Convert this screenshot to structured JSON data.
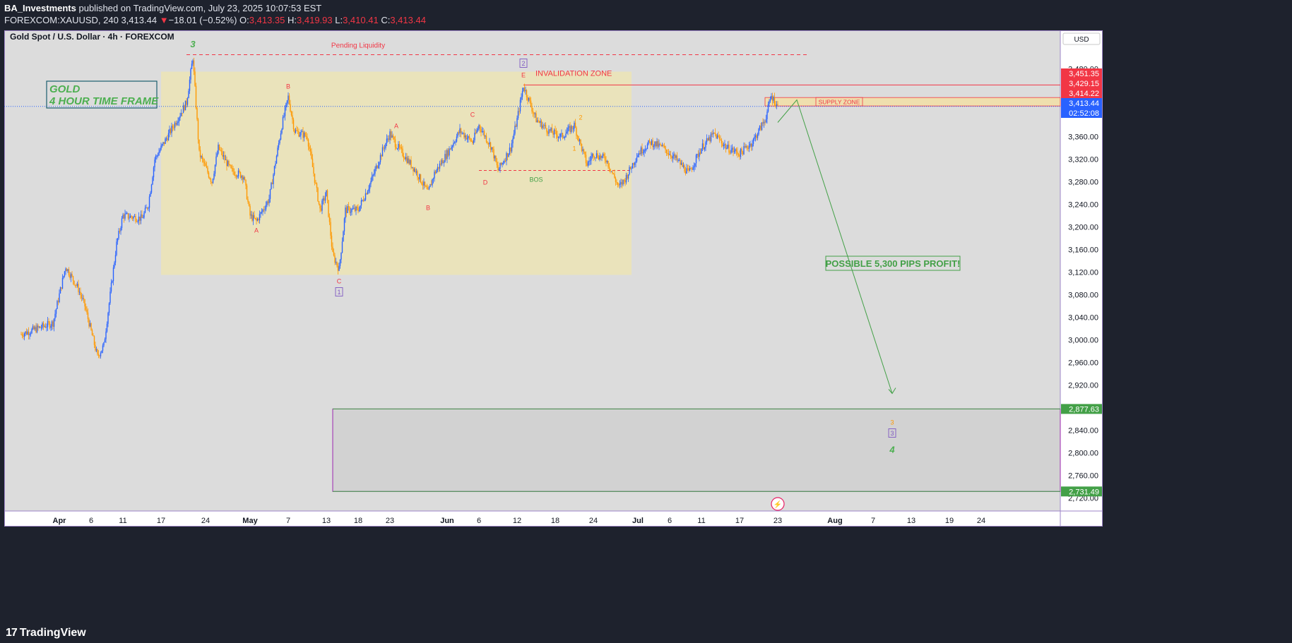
{
  "header": {
    "publisher": "BA_Investments",
    "published_text": " published on TradingView.com, July 23, 2025 10:07:53 EST",
    "symbol_line": "FOREXCOM:XAUUSD, 240",
    "last": "3,413.44",
    "change_arrow": "▼",
    "change": "−18.01 (−0.52%)",
    "o_label": "O:",
    "o": "3,413.35",
    "h_label": "H:",
    "h": "3,419.93",
    "l_label": "L:",
    "l": "3,410.41",
    "c_label": "C:",
    "c": "3,413.44"
  },
  "footer": {
    "brand": "TradingView",
    "brand_mark": "17"
  },
  "chart_data": {
    "type": "candlestick",
    "title": "Gold Spot / U.S. Dollar · 4h · FOREXCOM",
    "currency": "USD",
    "ylim": [
      2700,
      3520
    ],
    "y_ticks": [
      2720,
      2760,
      2800,
      2840,
      2880,
      2920,
      2960,
      3000,
      3040,
      3080,
      3120,
      3160,
      3200,
      3240,
      3280,
      3320,
      3360,
      3400,
      3440,
      3480
    ],
    "y_tick_labels": [
      "2,720.00",
      "2,760.00",
      "2,800.00",
      "2,840.00",
      "2,880.00",
      "2,920.00",
      "2,960.00",
      "3,000.00",
      "3,040.00",
      "3,080.00",
      "3,120.00",
      "3,160.00",
      "3,200.00",
      "3,240.00",
      "3,280.00",
      "3,320.00",
      "3,360.00",
      "3,400.00",
      "3,440.00",
      "3,480.00"
    ],
    "x_ticks": [
      {
        "date": "2025-04-01",
        "label": "Apr"
      },
      {
        "date": "2025-04-06",
        "label": "6"
      },
      {
        "date": "2025-04-11",
        "label": "11"
      },
      {
        "date": "2025-04-17",
        "label": "17"
      },
      {
        "date": "2025-04-24",
        "label": "24"
      },
      {
        "date": "2025-05-01",
        "label": "May"
      },
      {
        "date": "2025-05-07",
        "label": "7"
      },
      {
        "date": "2025-05-13",
        "label": "13"
      },
      {
        "date": "2025-05-18",
        "label": "18"
      },
      {
        "date": "2025-05-23",
        "label": "23"
      },
      {
        "date": "2025-06-01",
        "label": "Jun"
      },
      {
        "date": "2025-06-06",
        "label": "6"
      },
      {
        "date": "2025-06-12",
        "label": "12"
      },
      {
        "date": "2025-06-18",
        "label": "18"
      },
      {
        "date": "2025-06-24",
        "label": "24"
      },
      {
        "date": "2025-07-01",
        "label": "Jul"
      },
      {
        "date": "2025-07-06",
        "label": "6"
      },
      {
        "date": "2025-07-11",
        "label": "11"
      },
      {
        "date": "2025-07-17",
        "label": "17"
      },
      {
        "date": "2025-07-23",
        "label": "23"
      },
      {
        "date": "2025-08-01",
        "label": "Aug"
      },
      {
        "date": "2025-08-07",
        "label": "7"
      },
      {
        "date": "2025-08-13",
        "label": "13"
      },
      {
        "date": "2025-08-19",
        "label": "19"
      },
      {
        "date": "2025-08-24",
        "label": "24"
      }
    ],
    "price_path": [
      [
        "2025-03-26",
        3010
      ],
      [
        "2025-03-31",
        3030
      ],
      [
        "2025-04-02",
        3130
      ],
      [
        "2025-04-03",
        3110
      ],
      [
        "2025-04-04",
        3090
      ],
      [
        "2025-04-05",
        3060
      ],
      [
        "2025-04-07",
        2970
      ],
      [
        "2025-04-08",
        2990
      ],
      [
        "2025-04-09",
        3080
      ],
      [
        "2025-04-10",
        3170
      ],
      [
        "2025-04-11",
        3220
      ],
      [
        "2025-04-14",
        3215
      ],
      [
        "2025-04-15",
        3240
      ],
      [
        "2025-04-16",
        3320
      ],
      [
        "2025-04-17",
        3340
      ],
      [
        "2025-04-21",
        3420
      ],
      [
        "2025-04-22",
        3500
      ],
      [
        "2025-04-23",
        3330
      ],
      [
        "2025-04-25",
        3280
      ],
      [
        "2025-04-26",
        3340
      ],
      [
        "2025-04-28",
        3300
      ],
      [
        "2025-04-30",
        3290
      ],
      [
        "2025-05-01",
        3220
      ],
      [
        "2025-05-02",
        3210
      ],
      [
        "2025-05-04",
        3250
      ],
      [
        "2025-05-06",
        3380
      ],
      [
        "2025-05-07",
        3430
      ],
      [
        "2025-05-08",
        3370
      ],
      [
        "2025-05-10",
        3360
      ],
      [
        "2025-05-12",
        3230
      ],
      [
        "2025-05-13",
        3260
      ],
      [
        "2025-05-14",
        3150
      ],
      [
        "2025-05-15",
        3125
      ],
      [
        "2025-05-16",
        3230
      ],
      [
        "2025-05-18",
        3230
      ],
      [
        "2025-05-20",
        3280
      ],
      [
        "2025-05-22",
        3340
      ],
      [
        "2025-05-23",
        3365
      ],
      [
        "2025-05-24",
        3345
      ],
      [
        "2025-05-27",
        3300
      ],
      [
        "2025-05-29",
        3260
      ],
      [
        "2025-05-30",
        3295
      ],
      [
        "2025-06-01",
        3330
      ],
      [
        "2025-06-03",
        3370
      ],
      [
        "2025-06-05",
        3350
      ],
      [
        "2025-06-06",
        3380
      ],
      [
        "2025-06-08",
        3340
      ],
      [
        "2025-06-09",
        3300
      ],
      [
        "2025-06-11",
        3340
      ],
      [
        "2025-06-12",
        3390
      ],
      [
        "2025-06-13",
        3450
      ],
      [
        "2025-06-15",
        3390
      ],
      [
        "2025-06-17",
        3370
      ],
      [
        "2025-06-19",
        3360
      ],
      [
        "2025-06-21",
        3380
      ],
      [
        "2025-06-23",
        3310
      ],
      [
        "2025-06-24",
        3330
      ],
      [
        "2025-06-26",
        3320
      ],
      [
        "2025-06-28",
        3270
      ],
      [
        "2025-06-29",
        3285
      ],
      [
        "2025-07-01",
        3330
      ],
      [
        "2025-07-03",
        3350
      ],
      [
        "2025-07-05",
        3340
      ],
      [
        "2025-07-07",
        3320
      ],
      [
        "2025-07-09",
        3295
      ],
      [
        "2025-07-11",
        3340
      ],
      [
        "2025-07-13",
        3365
      ],
      [
        "2025-07-15",
        3340
      ],
      [
        "2025-07-17",
        3330
      ],
      [
        "2025-07-19",
        3350
      ],
      [
        "2025-07-21",
        3390
      ],
      [
        "2025-07-22",
        3432
      ],
      [
        "2025-07-23",
        3413.44
      ]
    ],
    "annotations": {
      "timeframe_box": [
        "GOLD",
        "4 HOUR TIME FRAME"
      ],
      "pending_liquidity": "Pending Liquidity",
      "pending_liquidity_price": 3505,
      "invalidation_zone": "INVALIDATION ZONE",
      "invalidation_price": 3451.35,
      "supply_zone": "SUPPLY ZONE",
      "supply_zone_range": [
        3414.22,
        3429.15
      ],
      "bos": "BOS",
      "bos_price": 3300,
      "profit_text": "POSSIBLE 5,300 PIPS PROFIT!",
      "target_zone_range": [
        2731.49,
        2877.63
      ],
      "range_box": {
        "from": "2025-04-17",
        "to": "2025-06-30",
        "top": 3475,
        "bottom": 3115
      },
      "forecast": [
        [
          "2025-07-23",
          3385
        ],
        [
          "2025-07-26",
          3425
        ],
        [
          "2025-08-10",
          2905
        ]
      ],
      "wave_labels": [
        {
          "text": "3",
          "date": "2025-04-22",
          "price": 3518,
          "color": "#4caf50",
          "italic": true
        },
        {
          "text": "A",
          "date": "2025-05-02",
          "price": 3190,
          "color": "#f23645"
        },
        {
          "text": "B",
          "date": "2025-05-07",
          "price": 3445,
          "color": "#f23645"
        },
        {
          "text": "C",
          "date": "2025-05-15",
          "price": 3100,
          "color": "#f23645"
        },
        {
          "text": "1",
          "date": "2025-05-15",
          "price": 3080,
          "color": "#7e57c2",
          "boxed": true
        },
        {
          "text": "A",
          "date": "2025-05-24",
          "price": 3375,
          "color": "#f23645"
        },
        {
          "text": "B",
          "date": "2025-05-29",
          "price": 3230,
          "color": "#f23645"
        },
        {
          "text": "C",
          "date": "2025-06-05",
          "price": 3395,
          "color": "#f23645"
        },
        {
          "text": "D",
          "date": "2025-06-07",
          "price": 3275,
          "color": "#f23645"
        },
        {
          "text": "E",
          "date": "2025-06-13",
          "price": 3465,
          "color": "#f23645"
        },
        {
          "text": "2",
          "date": "2025-06-13",
          "price": 3485,
          "color": "#7e57c2",
          "boxed": true
        },
        {
          "text": "1",
          "date": "2025-06-21",
          "price": 3335,
          "color": "#ff9800"
        },
        {
          "text": "2",
          "date": "2025-06-22",
          "price": 3390,
          "color": "#ff9800"
        },
        {
          "text": "3",
          "date": "2025-08-10",
          "price": 2850,
          "color": "#ff9800"
        },
        {
          "text": "3",
          "date": "2025-08-10",
          "price": 2830,
          "color": "#7e57c2",
          "boxed": true
        },
        {
          "text": "4",
          "date": "2025-08-10",
          "price": 2800,
          "color": "#4caf50",
          "italic": true
        }
      ]
    },
    "price_tags": [
      {
        "price": 3451.35,
        "label": "3,451.35",
        "color": "#f23645"
      },
      {
        "price": 3429.15,
        "label": "3,429.15",
        "color": "#f23645"
      },
      {
        "price": 3414.22,
        "label": "3,414.22",
        "color": "#f23645"
      },
      {
        "price": 3413.44,
        "label": "3,413.44",
        "color": "#2962ff",
        "countdown": "02:52:08"
      },
      {
        "price": 2877.63,
        "label": "2,877.63",
        "color": "#43a047"
      },
      {
        "price": 2731.49,
        "label": "2,731.49",
        "color": "#43a047"
      }
    ],
    "colors": {
      "up": "#2962ff",
      "down": "#ff9800",
      "background": "#dcdcdc",
      "axis_bg": "#ffffff"
    }
  }
}
